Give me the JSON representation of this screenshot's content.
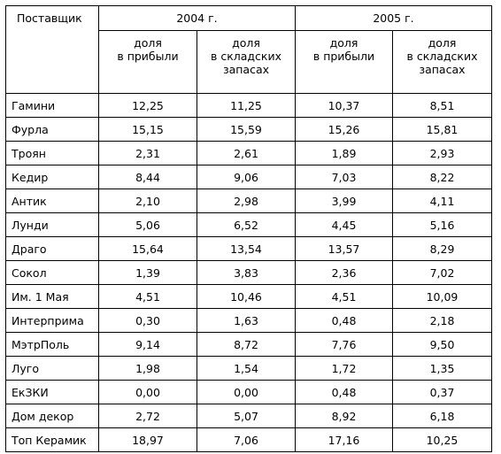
{
  "table": {
    "corner_label": "Поставщик",
    "years": [
      "2004 г.",
      "2005 г."
    ],
    "subheaders": [
      "доля\nв прибыли",
      "доля\nв складских\nзапасах",
      "доля\nв прибыли",
      "доля\nв складских\nзапасах"
    ],
    "rows": [
      {
        "name": "Гамини",
        "values": [
          "12,25",
          "11,25",
          "10,37",
          "8,51"
        ]
      },
      {
        "name": "Фурла",
        "values": [
          "15,15",
          "15,59",
          "15,26",
          "15,81"
        ]
      },
      {
        "name": "Троян",
        "values": [
          "2,31",
          "2,61",
          "1,89",
          "2,93"
        ]
      },
      {
        "name": "Кедир",
        "values": [
          "8,44",
          "9,06",
          "7,03",
          "8,22"
        ]
      },
      {
        "name": "Антик",
        "values": [
          "2,10",
          "2,98",
          "3,99",
          "4,11"
        ]
      },
      {
        "name": "Лунди",
        "values": [
          "5,06",
          "6,52",
          "4,45",
          "5,16"
        ]
      },
      {
        "name": "Драго",
        "values": [
          "15,64",
          "13,54",
          "13,57",
          "8,29"
        ]
      },
      {
        "name": "Сокол",
        "values": [
          "1,39",
          "3,83",
          "2,36",
          "7,02"
        ]
      },
      {
        "name": "Им. 1 Мая",
        "values": [
          "4,51",
          "10,46",
          "4,51",
          "10,09"
        ]
      },
      {
        "name": "Интерприма",
        "values": [
          "0,30",
          "1,63",
          "0,48",
          "2,18"
        ]
      },
      {
        "name": "МэтрПоль",
        "values": [
          "9,14",
          "8,72",
          "7,76",
          "9,50"
        ]
      },
      {
        "name": "Луго",
        "values": [
          "1,98",
          "1,54",
          "1,72",
          "1,35"
        ]
      },
      {
        "name": "ЕкЗКИ",
        "values": [
          "0,00",
          "0,00",
          "0,48",
          "0,37"
        ]
      },
      {
        "name": "Дом декор",
        "values": [
          "2,72",
          "5,07",
          "8,92",
          "6,18"
        ]
      },
      {
        "name": "Топ Керамик",
        "values": [
          "18,97",
          "7,06",
          "17,16",
          "10,25"
        ]
      }
    ]
  }
}
